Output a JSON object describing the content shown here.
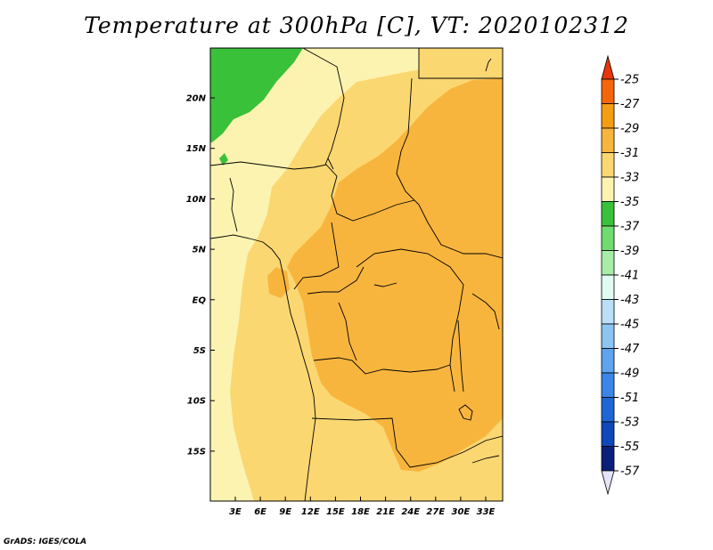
{
  "title": "Temperature at 300hPa [C], VT: 2020102312",
  "credit": "GrADS: IGES/COLA",
  "map": {
    "lat_labels": [
      "20N",
      "15N",
      "10N",
      "5N",
      "EQ",
      "5S",
      "10S",
      "15S"
    ],
    "lon_labels": [
      "3E",
      "6E",
      "9E",
      "12E",
      "15E",
      "18E",
      "21E",
      "24E",
      "27E",
      "30E",
      "33E"
    ]
  },
  "colorbar": {
    "labels": [
      "-25",
      "-27",
      "-29",
      "-31",
      "-33",
      "-35",
      "-37",
      "-39",
      "-41",
      "-43",
      "-45",
      "-47",
      "-49",
      "-51",
      "-53",
      "-55",
      "-57"
    ],
    "colors": [
      "#e8360a",
      "#f5660a",
      "#f59d12",
      "#f8b53e",
      "#fbd772",
      "#fdf3b0",
      "#3ac13a",
      "#6fdc6f",
      "#a8eca8",
      "#dffbf2",
      "#b9e0f7",
      "#8dc5f2",
      "#5ea4ee",
      "#3b86e8",
      "#1e66d6",
      "#0f48b8",
      "#0a1f7a"
    ],
    "top_color": "#e8360a",
    "bottom_color": "#e4e4f8"
  }
}
